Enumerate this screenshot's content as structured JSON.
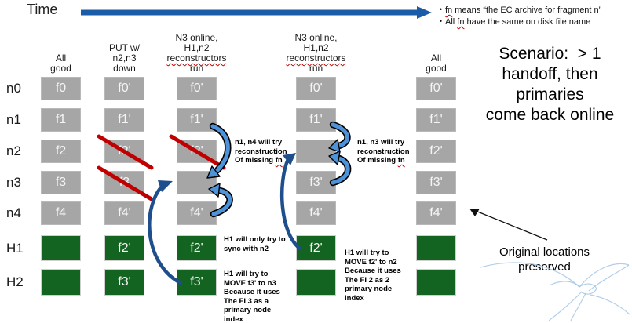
{
  "time_label": "Time",
  "bullets": [
    "fn means “the EC archive for fragment n”",
    "All fn have the same on disk file name"
  ],
  "scenario_lines": [
    "Scenario:  > 1",
    "handoff, then",
    "primaries",
    "come back online"
  ],
  "column_headers": [
    [
      "All",
      "good"
    ],
    [
      "PUT w/",
      "n2,n3",
      "down"
    ],
    [
      "N3 online,",
      "H1,n2",
      "reconstructors",
      "run"
    ],
    [
      "N3 online,",
      "H1,n2",
      "reconstructors",
      "run"
    ],
    [
      "All",
      "good"
    ]
  ],
  "row_labels": [
    "n0",
    "n1",
    "n2",
    "n3",
    "n4",
    "H1",
    "H2"
  ],
  "grid": {
    "cells": [
      [
        "f0",
        "f0'",
        "f0'",
        "f0'",
        "f0'"
      ],
      [
        "f1",
        "f1'",
        "f1'",
        "f1'",
        "f1'"
      ],
      [
        "f2",
        "f2'",
        "f2'",
        "",
        "f2'"
      ],
      [
        "f3",
        "f3",
        "",
        "f3'",
        "f3'"
      ],
      [
        "f4",
        "f4'",
        "f4'",
        "f4'",
        "f4'"
      ],
      [
        "",
        "f2'",
        "f2'",
        "f2'",
        ""
      ],
      [
        "",
        "f3'",
        "f3'",
        "",
        ""
      ]
    ],
    "crossed": [
      [
        2,
        1
      ],
      [
        2,
        2
      ],
      [
        3,
        1
      ]
    ]
  },
  "annotations": {
    "recon3": [
      "n1, n4 will try",
      "reconstruction",
      "Of missing fn"
    ],
    "recon4": [
      "n1, n3  will try",
      "reconstruction",
      "Of missing fn"
    ],
    "sync": [
      "H1 will only try to",
      "sync with n2"
    ],
    "move3": [
      "H1 will try to",
      "MOVE f3' to n3",
      "Because it uses",
      "The FI 3 as a",
      "primary node",
      "index"
    ],
    "move2": [
      "H1 will try to",
      "MOVE f2' to n2",
      "Because it uses",
      "The FI 2 as 2",
      "primary node",
      "index"
    ]
  },
  "original_note_lines": [
    "Original locations",
    "preserved"
  ],
  "misspelled_words": [
    "fn",
    "reconstructors"
  ],
  "colors": {
    "grey_box": "#A6A6A6",
    "green_box": "#136321",
    "time_arrow": "#1B5CA8",
    "curved_arrow": "#4D93D9",
    "long_arrow": "#1F4E8C",
    "cross": "#C00000",
    "sketch": "#9DC3E6"
  }
}
